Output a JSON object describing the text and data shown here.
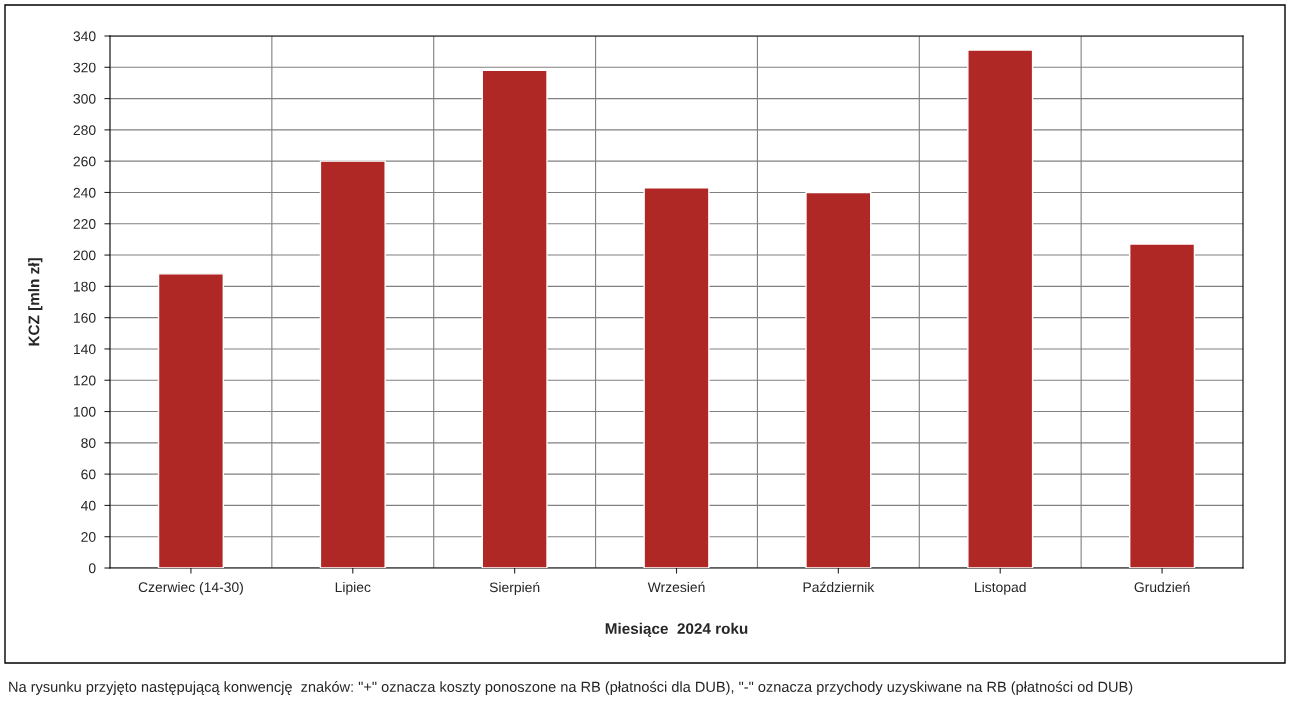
{
  "chart_data": {
    "type": "bar",
    "xlabel": "Miesiące  2024 roku",
    "ylabel": "KCZ [mln zł]",
    "categories": [
      "Czerwiec (14-30)",
      "Lipiec",
      "Sierpień",
      "Wrzesień",
      "Październik",
      "Listopad",
      "Grudzień"
    ],
    "values": [
      188,
      260,
      318,
      243,
      240,
      331,
      207
    ],
    "color": "#b02826",
    "ylim": [
      0,
      340
    ],
    "yticks": [
      0,
      20,
      40,
      60,
      80,
      100,
      120,
      140,
      160,
      180,
      200,
      220,
      240,
      260,
      280,
      300,
      320,
      340
    ],
    "grid": true,
    "annotations": [
      "Na rysunku przyjęto następującą konwencję  znaków: \"+\" oznacza koszty ponoszone na RB (płatności dla DUB), \"-\" oznacza przychody uzyskiwane na RB (płatności od DUB)"
    ]
  }
}
